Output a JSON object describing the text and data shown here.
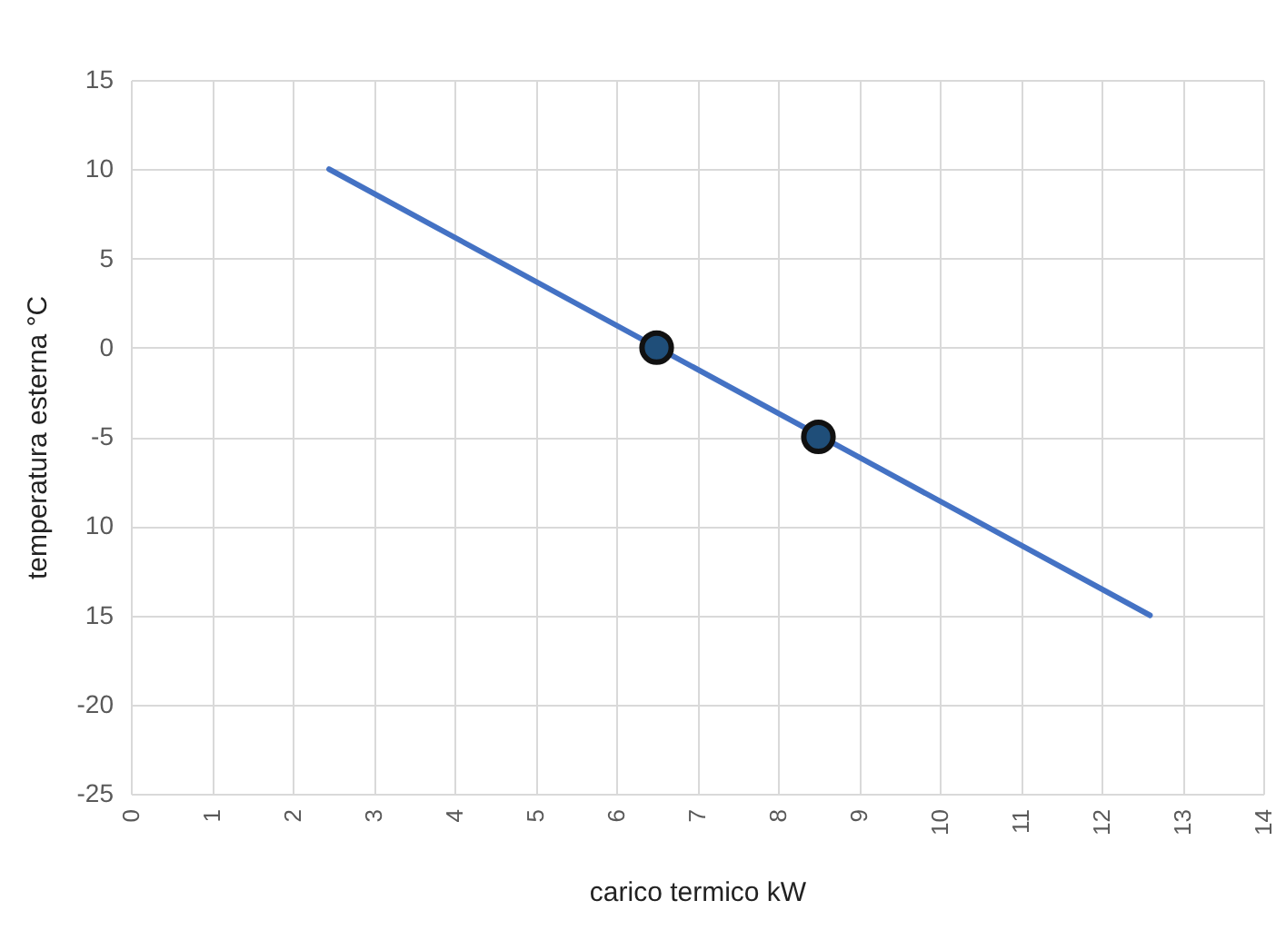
{
  "chart_data": {
    "type": "line",
    "xlabel": "carico termico kW",
    "ylabel": "temperatura esterna °C",
    "series": [
      {
        "color": "#4472c4",
        "x": [
          2.45,
          12.6
        ],
        "values": [
          10,
          -15
        ]
      },
      {
        "type": "scatter",
        "color": "#1f4e79",
        "x": [
          6.5,
          8.5
        ],
        "values": [
          0,
          -5
        ],
        "marker": "circle"
      }
    ],
    "xlim": [
      0,
      14
    ],
    "xticks": [
      0,
      1,
      2,
      3,
      4,
      5,
      6,
      7,
      8,
      9,
      10,
      11,
      12,
      13,
      14
    ],
    "ylim": [
      -25,
      15
    ],
    "yticks": [
      15,
      10,
      5,
      0,
      -5,
      {
        "value": -10,
        "label": "10"
      },
      {
        "value": -15,
        "label": "15"
      },
      -20,
      -25
    ],
    "grid": true
  }
}
